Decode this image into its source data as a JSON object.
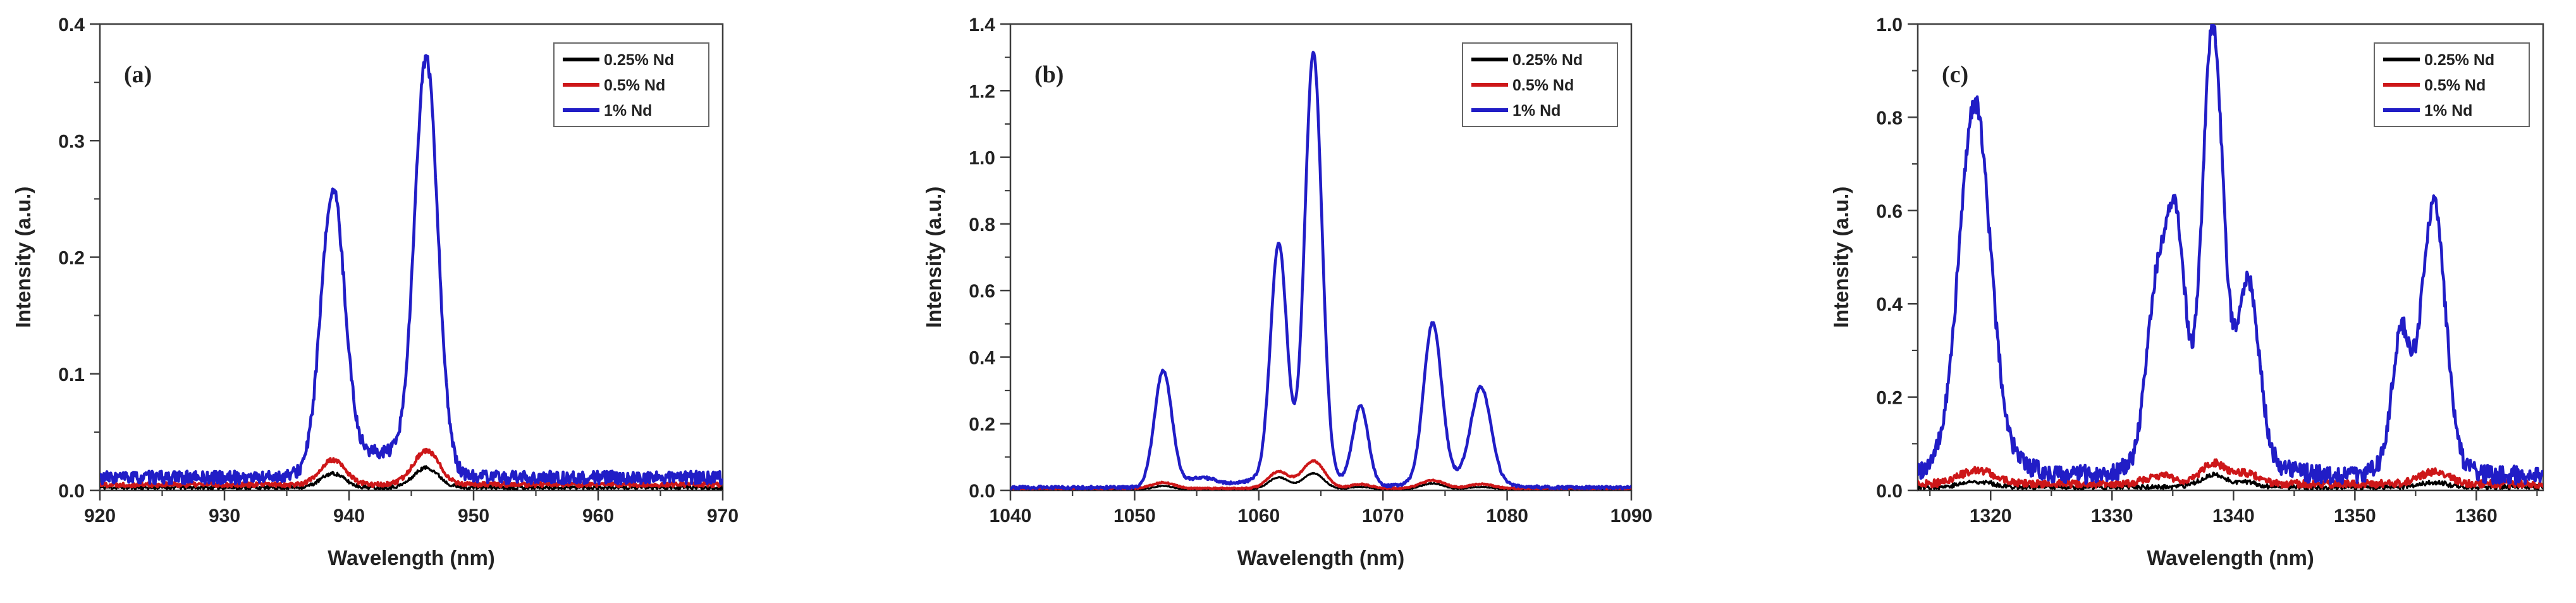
{
  "figure": {
    "background": "#ffffff",
    "axis_color": "#3d3d3d",
    "text_color": "#222222",
    "legend_border_color": "#666666"
  },
  "chart_data": [
    {
      "type": "line",
      "panel_label": "(a)",
      "xlabel": "Wavelength (nm)",
      "ylabel": "Intensity (a.u.)",
      "xlim": [
        920,
        970
      ],
      "ylim": [
        0,
        0.4
      ],
      "xticks": [
        920,
        930,
        940,
        950,
        960,
        970
      ],
      "yticks": [
        0.0,
        0.1,
        0.2,
        0.3,
        0.4
      ],
      "x_minor_step": 5,
      "y_minor_step": 0.05,
      "ytick_decimals": 1,
      "grid": false,
      "legend_position": "top-right",
      "legend": [
        {
          "label": "0.25% Nd",
          "color": "#000000"
        },
        {
          "label": "0.5% Nd",
          "color": "#cd1719"
        },
        {
          "label": "1% Nd",
          "color": "#211dc6"
        }
      ],
      "series": [
        {
          "name": "0.25% Nd",
          "color": "#000000",
          "stroke_width": 3.2,
          "seed": 11,
          "baseline": 0.0025,
          "noise": 0.0016,
          "peaks": [
            {
              "c": 938.7,
              "h": 0.012,
              "w": 0.95
            },
            {
              "c": 946.2,
              "h": 0.017,
              "w": 1.0
            }
          ]
        },
        {
          "name": "0.5% Nd",
          "color": "#cd1719",
          "stroke_width": 4.2,
          "seed": 22,
          "baseline": 0.005,
          "noise": 0.002,
          "peaks": [
            {
              "c": 938.7,
              "h": 0.021,
              "w": 1.0
            },
            {
              "c": 946.2,
              "h": 0.029,
              "w": 1.05
            }
          ]
        },
        {
          "name": "1% Nd",
          "color": "#211dc6",
          "stroke_width": 4.6,
          "seed": 33,
          "baseline": 0.011,
          "noise": 0.0055,
          "peaks": [
            {
              "c": 938.7,
              "h": 0.235,
              "w": 0.95
            },
            {
              "c": 946.2,
              "h": 0.35,
              "w": 0.92
            },
            {
              "c": 942.3,
              "h": 0.022,
              "w": 3.2
            }
          ]
        }
      ]
    },
    {
      "type": "line",
      "panel_label": "(b)",
      "xlabel": "Wavelength (nm)",
      "ylabel": "Intensity (a.u.)",
      "xlim": [
        1040,
        1090
      ],
      "ylim": [
        0,
        1.4
      ],
      "xticks": [
        1040,
        1050,
        1060,
        1070,
        1080,
        1090
      ],
      "yticks": [
        0.0,
        0.2,
        0.4,
        0.6,
        0.8,
        1.0,
        1.2,
        1.4
      ],
      "x_minor_step": 5,
      "y_minor_step": 0.1,
      "ytick_decimals": 1,
      "grid": false,
      "legend_position": "top-right",
      "legend": [
        {
          "label": "0.25% Nd",
          "color": "#000000"
        },
        {
          "label": "0.5% Nd",
          "color": "#cd1719"
        },
        {
          "label": "1% Nd",
          "color": "#211dc6"
        }
      ],
      "series": [
        {
          "name": "0.25% Nd",
          "color": "#000000",
          "stroke_width": 3.2,
          "seed": 44,
          "baseline": 0.003,
          "noise": 0.0015,
          "peaks": [
            {
              "c": 1052.3,
              "h": 0.01,
              "w": 0.8
            },
            {
              "c": 1061.6,
              "h": 0.036,
              "w": 0.8
            },
            {
              "c": 1064.4,
              "h": 0.048,
              "w": 0.85
            },
            {
              "c": 1068.2,
              "h": 0.008,
              "w": 0.8
            },
            {
              "c": 1074.0,
              "h": 0.018,
              "w": 0.9
            },
            {
              "c": 1077.9,
              "h": 0.008,
              "w": 0.9
            }
          ]
        },
        {
          "name": "0.5% Nd",
          "color": "#cd1719",
          "stroke_width": 4.2,
          "seed": 55,
          "baseline": 0.006,
          "noise": 0.002,
          "peaks": [
            {
              "c": 1052.3,
              "h": 0.018,
              "w": 0.85
            },
            {
              "c": 1061.6,
              "h": 0.05,
              "w": 0.85
            },
            {
              "c": 1064.4,
              "h": 0.082,
              "w": 0.9
            },
            {
              "c": 1068.2,
              "h": 0.012,
              "w": 0.85
            },
            {
              "c": 1074.0,
              "h": 0.024,
              "w": 0.95
            },
            {
              "c": 1077.9,
              "h": 0.013,
              "w": 0.95
            }
          ]
        },
        {
          "name": "1% Nd",
          "color": "#211dc6",
          "stroke_width": 4.6,
          "seed": 66,
          "baseline": 0.009,
          "noise": 0.004,
          "peaks": [
            {
              "c": 1052.3,
              "h": 0.35,
              "w": 0.7
            },
            {
              "c": 1055.3,
              "h": 0.028,
              "w": 1.3
            },
            {
              "c": 1061.6,
              "h": 0.69,
              "w": 0.65
            },
            {
              "c": 1064.4,
              "h": 1.26,
              "w": 0.68
            },
            {
              "c": 1068.2,
              "h": 0.235,
              "w": 0.62
            },
            {
              "c": 1074.0,
              "h": 0.47,
              "w": 0.72
            },
            {
              "c": 1077.9,
              "h": 0.28,
              "w": 0.8
            },
            {
              "c": 1063.0,
              "h": 0.05,
              "w": 2.8
            },
            {
              "c": 1075.8,
              "h": 0.03,
              "w": 2.6
            }
          ]
        }
      ]
    },
    {
      "type": "line",
      "panel_label": "(c)",
      "xlabel": "Wavelength (nm)",
      "ylabel": "Intensity (a.u.)",
      "xlim": [
        1314,
        1365.5
      ],
      "ylim": [
        0,
        1.0
      ],
      "xticks": [
        1320,
        1330,
        1340,
        1350,
        1360
      ],
      "yticks": [
        0.0,
        0.2,
        0.4,
        0.6,
        0.8,
        1.0
      ],
      "x_minor_step": 5,
      "y_minor_step": 0.1,
      "ytick_decimals": 1,
      "grid": false,
      "legend_position": "top-right",
      "legend": [
        {
          "label": "0.25% Nd",
          "color": "#000000"
        },
        {
          "label": "0.5% Nd",
          "color": "#cd1719"
        },
        {
          "label": "1% Nd",
          "color": "#211dc6"
        }
      ],
      "series": [
        {
          "name": "0.25% Nd",
          "color": "#000000",
          "stroke_width": 3.2,
          "seed": 77,
          "baseline": 0.007,
          "noise": 0.005,
          "peaks": [
            {
              "c": 1318.9,
              "h": 0.012,
              "w": 1.3
            },
            {
              "c": 1338.3,
              "h": 0.026,
              "w": 1.0
            },
            {
              "c": 1341.0,
              "h": 0.01,
              "w": 1.0
            },
            {
              "c": 1356.5,
              "h": 0.01,
              "w": 1.1
            }
          ]
        },
        {
          "name": "0.5% Nd",
          "color": "#cd1719",
          "stroke_width": 4.2,
          "seed": 88,
          "baseline": 0.014,
          "noise": 0.008,
          "peaks": [
            {
              "c": 1318.9,
              "h": 0.03,
              "w": 1.4
            },
            {
              "c": 1334.0,
              "h": 0.018,
              "w": 1.2
            },
            {
              "c": 1338.3,
              "h": 0.045,
              "w": 1.0
            },
            {
              "c": 1341.0,
              "h": 0.022,
              "w": 1.0
            },
            {
              "c": 1356.5,
              "h": 0.025,
              "w": 1.2
            }
          ]
        },
        {
          "name": "1% Nd",
          "color": "#211dc6",
          "stroke_width": 4.6,
          "seed": 99,
          "baseline": 0.033,
          "noise": 0.02,
          "peaks": [
            {
              "c": 1318.7,
              "h": 0.74,
              "w": 1.25
            },
            {
              "c": 1333.7,
              "h": 0.36,
              "w": 0.85
            },
            {
              "c": 1335.3,
              "h": 0.44,
              "w": 0.75
            },
            {
              "c": 1338.3,
              "h": 0.88,
              "w": 0.82
            },
            {
              "c": 1341.2,
              "h": 0.37,
              "w": 0.9
            },
            {
              "c": 1353.8,
              "h": 0.27,
              "w": 0.75
            },
            {
              "c": 1356.5,
              "h": 0.54,
              "w": 0.95
            },
            {
              "c": 1319.0,
              "h": 0.06,
              "w": 2.6
            },
            {
              "c": 1337.6,
              "h": 0.09,
              "w": 3.4
            },
            {
              "c": 1355.4,
              "h": 0.05,
              "w": 2.2
            }
          ]
        }
      ]
    }
  ]
}
